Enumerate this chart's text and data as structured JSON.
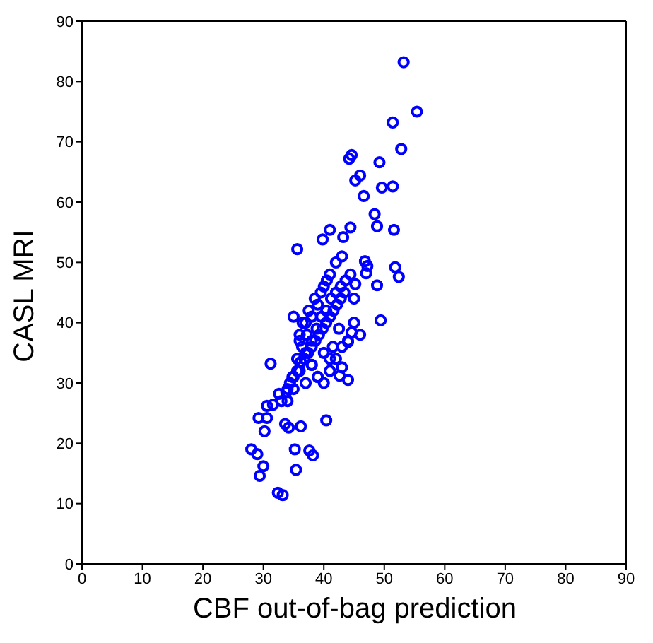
{
  "chart_data": {
    "type": "scatter",
    "xlabel": "CBF out-of-bag prediction",
    "ylabel": "CASL MRI",
    "marker": "circle",
    "xlim": [
      0,
      90
    ],
    "ylim": [
      0,
      90
    ],
    "xticks": [
      0,
      10,
      20,
      30,
      40,
      50,
      60,
      70,
      80,
      90
    ],
    "yticks": [
      0,
      10,
      20,
      30,
      40,
      50,
      60,
      70,
      80,
      90
    ],
    "series": [
      {
        "color": "#0000ff",
        "x": [
          53.2,
          55.4,
          51.4,
          52.8,
          44.2,
          44.6,
          49.2,
          51.4,
          49.6,
          46,
          45.2,
          46.6,
          48.4,
          48.8,
          51.6,
          44.4,
          41,
          43.2,
          39.8,
          35.6,
          51.8,
          52.4,
          49.4,
          46.8,
          47.2,
          47,
          45.2,
          48.8,
          44.6,
          44,
          40.4,
          36.2,
          30.6,
          29.2,
          30.2,
          28,
          29,
          29.4,
          30,
          32.4,
          33.2,
          35.2,
          37.6,
          38.2,
          35.4,
          33.6,
          34.2,
          31.2,
          32.6,
          31.6,
          30.6,
          42.6,
          43,
          33,
          33.8,
          34.4,
          35,
          35.6,
          36.2,
          36.8,
          37.4,
          38,
          38.6,
          39.2,
          39.8,
          40.4,
          41,
          41.6,
          42.2,
          42.8,
          43.4,
          44,
          34,
          34.8,
          35.6,
          36.4,
          37.2,
          38,
          38.8,
          39.6,
          40.4,
          41.2,
          42,
          42.8,
          43.6,
          44.4,
          45,
          36,
          37,
          38,
          39,
          40,
          41,
          42,
          43,
          36.5,
          37.5,
          38.5,
          39.5,
          40.5,
          41.5,
          42.5,
          35,
          36,
          37,
          38,
          39,
          40,
          41,
          42,
          43,
          44,
          45,
          46,
          34,
          35,
          40,
          41,
          39,
          38,
          37,
          36
        ],
        "values": [
          83.2,
          75,
          73.2,
          68.8,
          67.2,
          67.8,
          66.6,
          62.6,
          62.4,
          64.4,
          63.6,
          61,
          58,
          56,
          55.4,
          55.8,
          55.4,
          54.2,
          53.8,
          52.2,
          49.2,
          47.6,
          40.4,
          50.2,
          49.4,
          48.2,
          46.4,
          46.2,
          38.4,
          36.8,
          23.8,
          22.8,
          24.2,
          24.2,
          22,
          19,
          18.2,
          14.6,
          16.2,
          11.8,
          11.4,
          19,
          18.8,
          18,
          15.6,
          23.2,
          22.6,
          33.2,
          28.2,
          26.4,
          26.2,
          31.2,
          32.6,
          27,
          28.5,
          30,
          31,
          32,
          33.5,
          34,
          35,
          36,
          37,
          38,
          39,
          40,
          41,
          42,
          43,
          44,
          45,
          30.5,
          29,
          31,
          34,
          36,
          38,
          37,
          39,
          41,
          42,
          44,
          45,
          46,
          47,
          48,
          44,
          38,
          40,
          41,
          43,
          46,
          48,
          50,
          51,
          40,
          42,
          44,
          45,
          47,
          36,
          39,
          41,
          37,
          35,
          33,
          31,
          30,
          32,
          34,
          36,
          37,
          40,
          38,
          27,
          29,
          35,
          34,
          31,
          33,
          30,
          32
        ]
      }
    ]
  }
}
